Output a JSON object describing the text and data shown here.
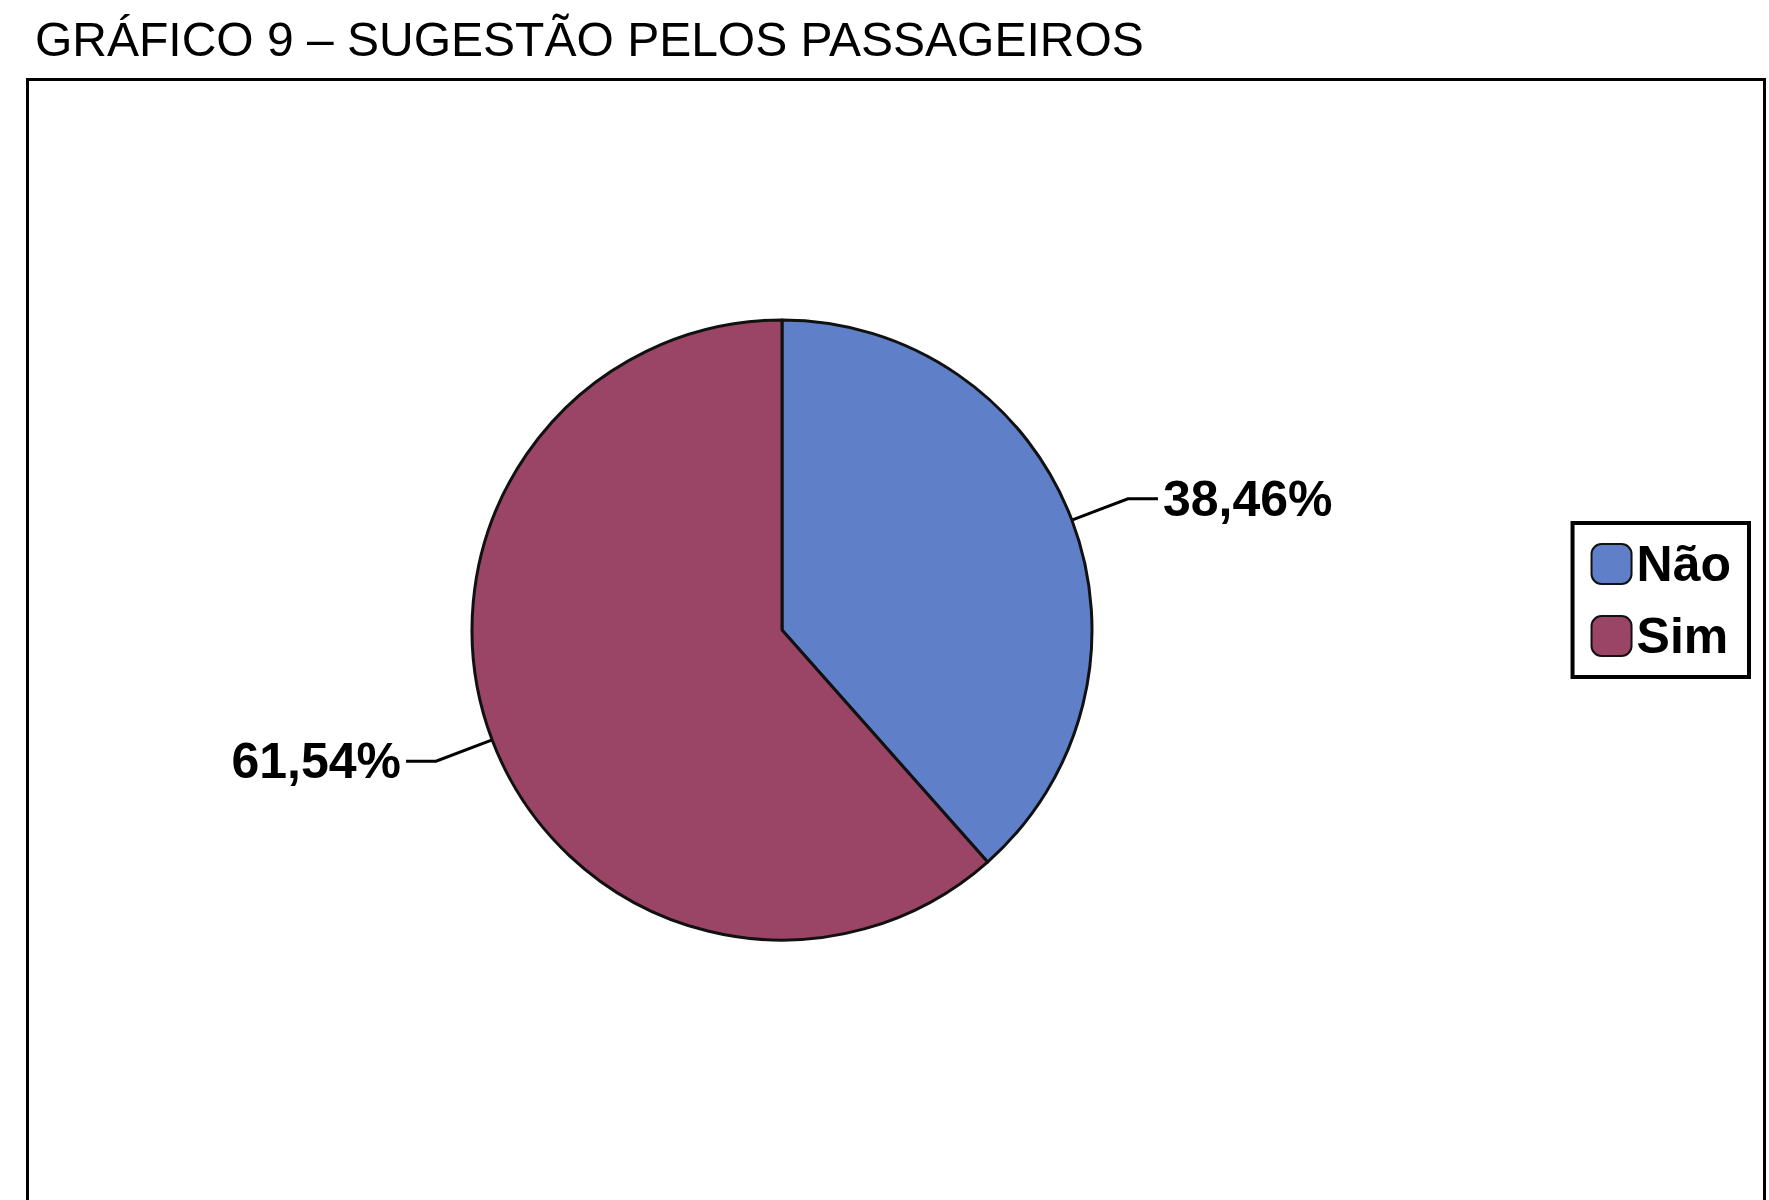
{
  "chart_data": {
    "type": "pie",
    "title": "GRÁFICO 9 – SUGESTÃO PELOS PASSAGEIROS",
    "categories": [
      "Não",
      "Sim"
    ],
    "values": [
      38.46,
      61.54
    ],
    "colors": [
      "#5f80c8",
      "#9b4566"
    ],
    "value_labels": [
      "38,46%",
      "61,54%"
    ],
    "legend": "right"
  }
}
